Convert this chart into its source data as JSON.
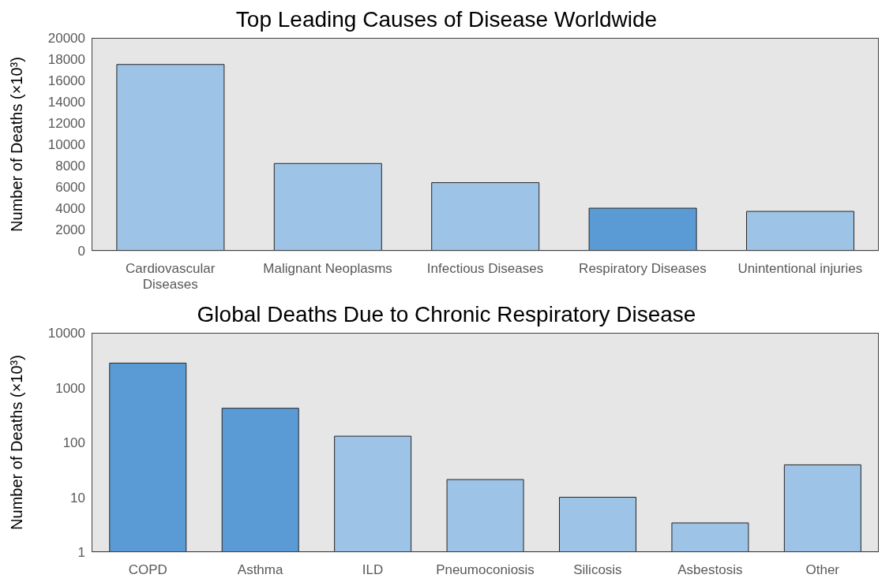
{
  "chart_data": [
    {
      "type": "bar",
      "title": "Top Leading Causes of Disease Worldwide",
      "ylabel": "Number of Deaths (×10³)",
      "categories": [
        "Cardiovascular Diseases",
        "Malignant Neoplasms",
        "Infectious Diseases",
        "Respiratory Diseases",
        "Unintentional injuries"
      ],
      "values": [
        17500,
        8200,
        6400,
        4000,
        3700
      ],
      "colors": [
        "#9dc3e6",
        "#9dc3e6",
        "#9dc3e6",
        "#5b9bd5",
        "#9dc3e6"
      ],
      "ylim": [
        0,
        20000
      ],
      "yticks": [
        0,
        2000,
        4000,
        6000,
        8000,
        10000,
        12000,
        14000,
        16000,
        18000,
        20000
      ]
    },
    {
      "type": "bar",
      "title": "Global Deaths Due to Chronic Respiratory Disease",
      "ylabel": "Number of Deaths (×10³)",
      "categories": [
        "COPD",
        "Asthma",
        "ILD",
        "Pneumoconiosis",
        "Silicosis",
        "Asbestosis",
        "Other"
      ],
      "values": [
        2800,
        420,
        130,
        21,
        10,
        3.4,
        39
      ],
      "colors": [
        "#5b9bd5",
        "#5b9bd5",
        "#9dc3e6",
        "#9dc3e6",
        "#9dc3e6",
        "#9dc3e6",
        "#9dc3e6"
      ],
      "ylim": [
        1,
        10000
      ],
      "yticks": [
        1,
        10,
        100,
        1000,
        10000
      ],
      "log": true
    }
  ]
}
